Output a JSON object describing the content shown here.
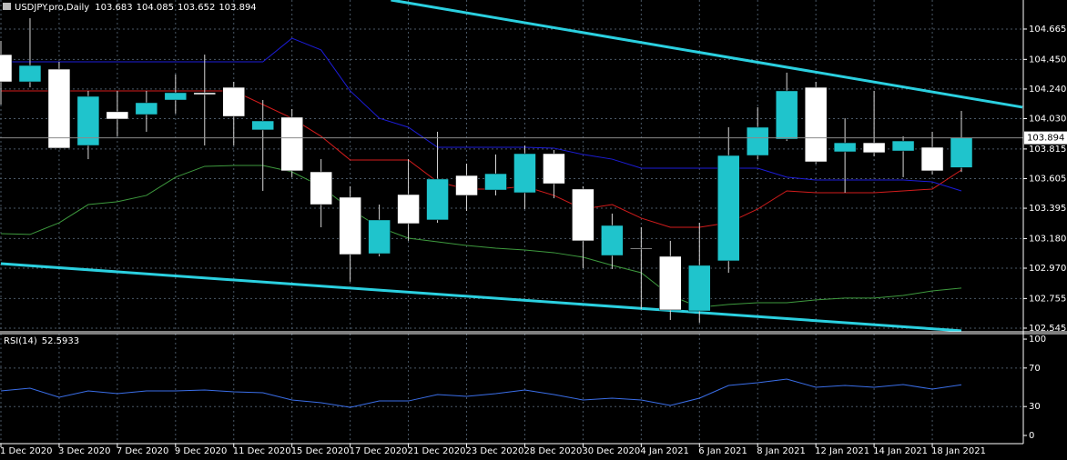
{
  "chart_data": [
    {
      "type": "candlestick",
      "title": "USDJPY.pro,Daily",
      "categories": [
        "1 Dec 2020",
        null,
        "3 Dec 2020",
        null,
        "7 Dec 2020",
        null,
        "9 Dec 2020",
        null,
        "11 Dec 2020",
        null,
        "15 Dec 2020",
        null,
        "17 Dec 2020",
        null,
        "21 Dec 2020",
        null,
        "23 Dec 2020",
        null,
        "28 Dec 2020",
        null,
        "30 Dec 2020",
        null,
        "4 Jan 2021",
        null,
        "6 Jan 2021",
        null,
        "8 Jan 2021",
        null,
        "12 Jan 2021",
        null,
        "14 Jan 2021",
        null,
        "18 Jan 2021",
        null
      ],
      "open": [
        104.484,
        104.291,
        104.381,
        103.84,
        104.079,
        104.059,
        104.162,
        104.214,
        104.252,
        103.95,
        104.04,
        103.653,
        103.473,
        103.073,
        103.492,
        103.312,
        103.627,
        103.524,
        103.505,
        103.782,
        103.531,
        103.06,
        103.112,
        103.054,
        102.667,
        103.022,
        103.769,
        103.885,
        104.252,
        103.795,
        103.859,
        103.801,
        103.827,
        103.683
      ],
      "high": [
        104.581,
        104.742,
        104.433,
        104.227,
        104.227,
        104.227,
        104.343,
        104.484,
        104.291,
        104.162,
        104.098,
        103.743,
        103.55,
        103.421,
        103.743,
        103.937,
        103.711,
        103.776,
        103.84,
        103.808,
        103.55,
        103.357,
        103.26,
        103.164,
        103.292,
        103.969,
        104.111,
        104.356,
        104.291,
        104.033,
        104.227,
        103.905,
        103.937,
        104.085
      ],
      "low": [
        104.13,
        104.252,
        103.821,
        103.743,
        103.905,
        103.937,
        104.066,
        103.84,
        103.84,
        103.518,
        103.615,
        103.26,
        102.874,
        103.054,
        103.164,
        103.292,
        103.376,
        103.486,
        103.389,
        103.466,
        102.97,
        102.964,
        102.68,
        102.603,
        102.584,
        102.938,
        103.743,
        103.872,
        103.711,
        103.505,
        103.763,
        103.615,
        103.634,
        103.652
      ],
      "close": [
        104.291,
        104.407,
        103.821,
        104.188,
        104.027,
        104.143,
        104.214,
        104.201,
        104.046,
        104.014,
        103.66,
        103.421,
        103.067,
        103.312,
        103.286,
        103.602,
        103.486,
        103.64,
        103.782,
        103.569,
        103.164,
        103.273,
        103.106,
        102.674,
        102.99,
        103.769,
        103.969,
        104.227,
        103.724,
        103.859,
        103.789,
        103.872,
        103.66,
        103.894
      ],
      "up_color": "#1fc4cc",
      "down_color": "#ffffff",
      "wick_color": "#d8d8d8",
      "series": [
        {
          "color": "#d41c1c",
          "values": [
            104.227,
            104.227,
            104.227,
            104.227,
            104.227,
            104.227,
            104.227,
            104.227,
            104.227,
            104.13,
            104.033,
            103.905,
            103.737,
            103.737,
            103.737,
            103.582,
            103.531,
            103.531,
            103.55,
            103.486,
            103.389,
            103.421,
            103.325,
            103.26,
            103.26,
            103.292,
            103.389,
            103.518,
            103.505,
            103.505,
            103.505,
            103.518,
            103.531,
            103.666
          ]
        },
        {
          "color": "#1c1cd8",
          "values": [
            104.433,
            104.433,
            104.433,
            104.433,
            104.433,
            104.433,
            104.433,
            104.433,
            104.433,
            104.433,
            104.6,
            104.517,
            104.227,
            104.033,
            103.969,
            103.827,
            103.827,
            103.827,
            103.827,
            103.821,
            103.776,
            103.743,
            103.679,
            103.679,
            103.679,
            103.679,
            103.679,
            103.615,
            103.595,
            103.595,
            103.595,
            103.595,
            103.582,
            103.518
          ]
        },
        {
          "color": "#3e9a3e",
          "values": [
            103.215,
            103.209,
            103.292,
            103.421,
            103.441,
            103.486,
            103.615,
            103.692,
            103.698,
            103.698,
            103.653,
            103.55,
            103.389,
            103.26,
            103.183,
            103.157,
            103.131,
            103.112,
            103.099,
            103.08,
            103.048,
            102.99,
            102.938,
            102.777,
            102.693,
            102.713,
            102.725,
            102.725,
            102.745,
            102.758,
            102.758,
            102.777,
            102.809,
            102.829
          ]
        }
      ],
      "trendlines": [
        {
          "color": "#2bd0e0",
          "x": [
            13.4,
            35.1
          ],
          "values": [
            104.871,
            104.111
          ]
        },
        {
          "color": "#2bd0e0",
          "x": [
            0,
            33
          ],
          "values": [
            103.002,
            102.526
          ]
        }
      ],
      "ylim": [
        102.519,
        104.871
      ],
      "yticks": [
        {
          "value": 102.545,
          "label": "102.545"
        },
        {
          "value": 102.755,
          "label": "102.755"
        },
        {
          "value": 102.97,
          "label": "102.970"
        },
        {
          "value": 103.18,
          "label": "103.180"
        },
        {
          "value": 103.395,
          "label": "103.395"
        },
        {
          "value": 103.605,
          "label": "103.605"
        },
        {
          "value": 103.815,
          "label": "103.815"
        },
        {
          "value": 104.03,
          "label": "104.030"
        },
        {
          "value": 104.24,
          "label": "104.240"
        },
        {
          "value": 104.45,
          "label": "104.450"
        },
        {
          "value": 104.665,
          "label": "104.665"
        }
      ],
      "grid": true
    },
    {
      "type": "line",
      "title": "RSI(14)",
      "current": 52.5933,
      "color": "#3a6ee8",
      "values": [
        46.2,
        49.1,
        39.6,
        46.2,
        43.4,
        46.2,
        46.2,
        47.2,
        45.3,
        44.3,
        36.8,
        34.0,
        29.2,
        35.8,
        35.8,
        42.5,
        40.6,
        43.4,
        47.2,
        42.5,
        36.8,
        38.7,
        36.8,
        31.1,
        38.7,
        51.9,
        54.7,
        58.5,
        50.0,
        51.9,
        50.0,
        52.8,
        48.1,
        52.5933
      ],
      "ylim": [
        -8.5,
        105.7
      ],
      "yticks": [
        0,
        30,
        70,
        100
      ],
      "levels": [
        30,
        70
      ]
    }
  ]
}
